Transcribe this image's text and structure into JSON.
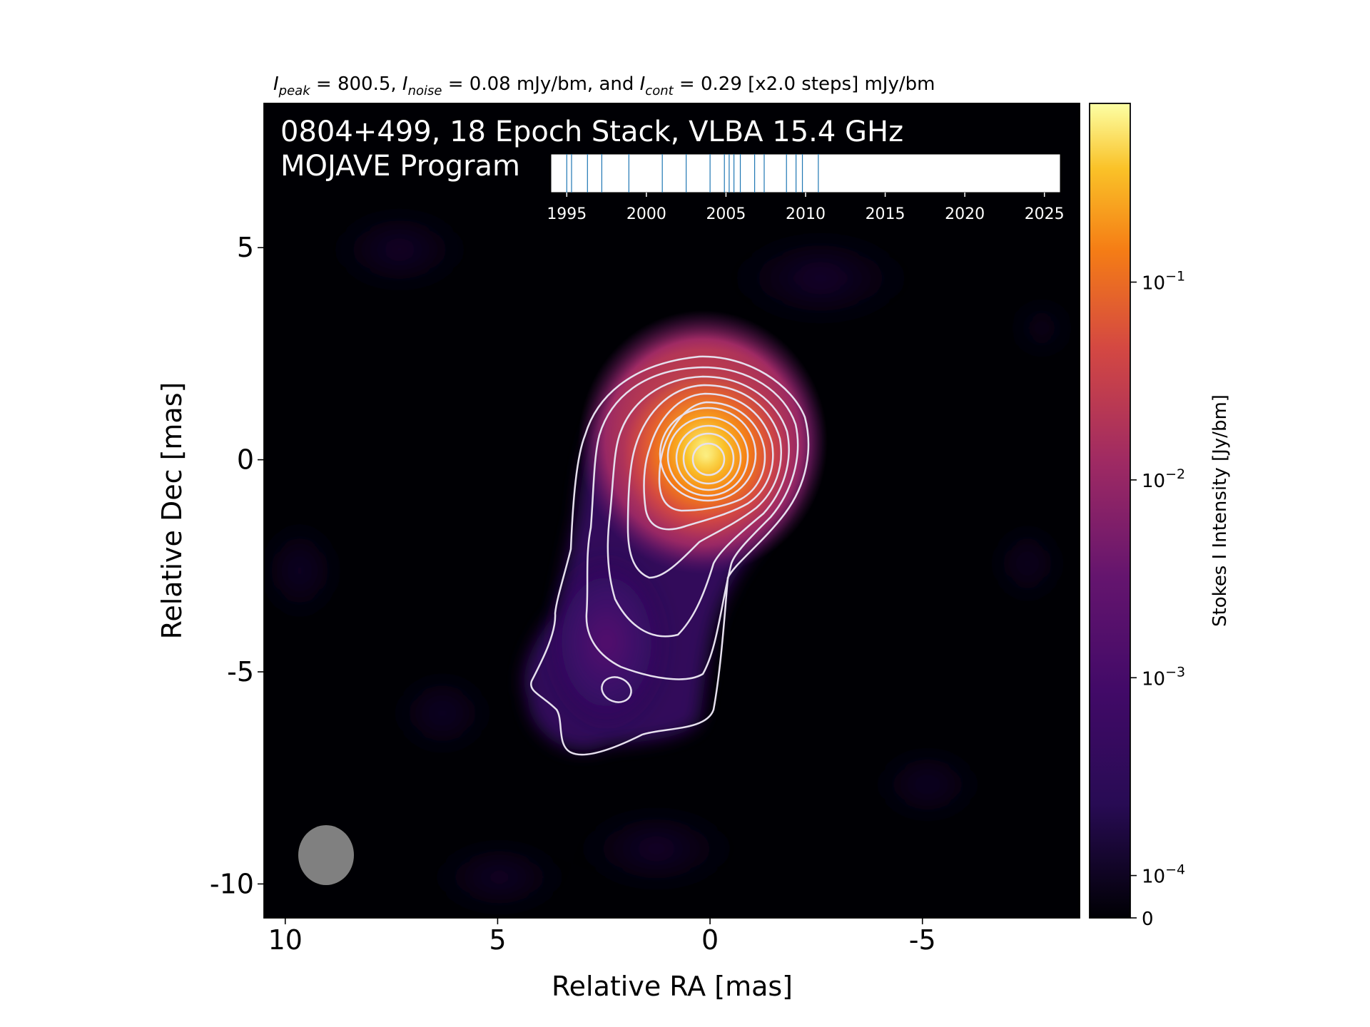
{
  "header": {
    "peak_sym": "I",
    "peak_sub": "peak",
    "peak_val": " = 800.5, ",
    "noise_sym": "I",
    "noise_sub": "noise",
    "noise_val": " = 0.08 mJy/bm, and ",
    "cont_sym": "I",
    "cont_sub": "cont",
    "cont_val": " = 0.29 [x2.0 steps] mJy/bm"
  },
  "title_line1": "0804+499, 18 Epoch Stack, VLBA 15.4 GHz",
  "title_line2": "MOJAVE Program",
  "chart_data": {
    "type": "heatmap",
    "source": "0804+499",
    "frequency": "VLBA 15.4 GHz",
    "xlabel": "Relative RA [mas]",
    "ylabel": "Relative Dec [mas]",
    "xlim": [
      10.5,
      -8.7
    ],
    "ylim": [
      -10.8,
      8.4
    ],
    "x_ticks": [
      {
        "value": 10,
        "label": "10"
      },
      {
        "value": 5,
        "label": "5"
      },
      {
        "value": 0,
        "label": "0"
      },
      {
        "value": -5,
        "label": "-5"
      }
    ],
    "y_ticks": [
      {
        "value": 5,
        "label": "5"
      },
      {
        "value": 0,
        "label": "0"
      },
      {
        "value": -5,
        "label": "-5"
      },
      {
        "value": -10,
        "label": "-10"
      }
    ],
    "peak_mJy_per_beam": 800.5,
    "noise_mJy_per_beam": 0.08,
    "first_contour_mJy_per_beam": 0.29,
    "contour_step_factor": 2.0,
    "core_position": [
      0,
      0
    ],
    "colormap": [
      "#000004",
      "#280b54",
      "#65156e",
      "#9f2a63",
      "#d44842",
      "#f57d15",
      "#fac228",
      "#fcffa4"
    ],
    "colorbar": {
      "label": "Stokes I Intensity [Jy/bm]",
      "scale": "log",
      "range": [
        0,
        0.8005
      ],
      "ticks": [
        {
          "value": 0,
          "base": "0",
          "exp": ""
        },
        {
          "value": 0.0001,
          "base": "10",
          "exp": "−4"
        },
        {
          "value": 0.001,
          "base": "10",
          "exp": "−3"
        },
        {
          "value": 0.01,
          "base": "10",
          "exp": "−2"
        },
        {
          "value": 0.1,
          "base": "10",
          "exp": "−1"
        }
      ]
    },
    "epoch_timeline": {
      "range": [
        1994,
        2026
      ],
      "ticks": [
        1995,
        2000,
        2005,
        2010,
        2015,
        2020,
        2025
      ],
      "epochs": [
        1995.0,
        1995.3,
        1996.3,
        1997.2,
        1998.9,
        2001.0,
        2002.5,
        2004.0,
        2004.9,
        2005.2,
        2005.5,
        2005.9,
        2006.8,
        2007.4,
        2008.8,
        2009.4,
        2009.8,
        2010.8
      ],
      "epoch_color": "#1f77b4"
    },
    "beam": {
      "major_mas": 1.45,
      "minor_mas": 1.3,
      "pa_deg": 0,
      "color": "#808080"
    }
  }
}
